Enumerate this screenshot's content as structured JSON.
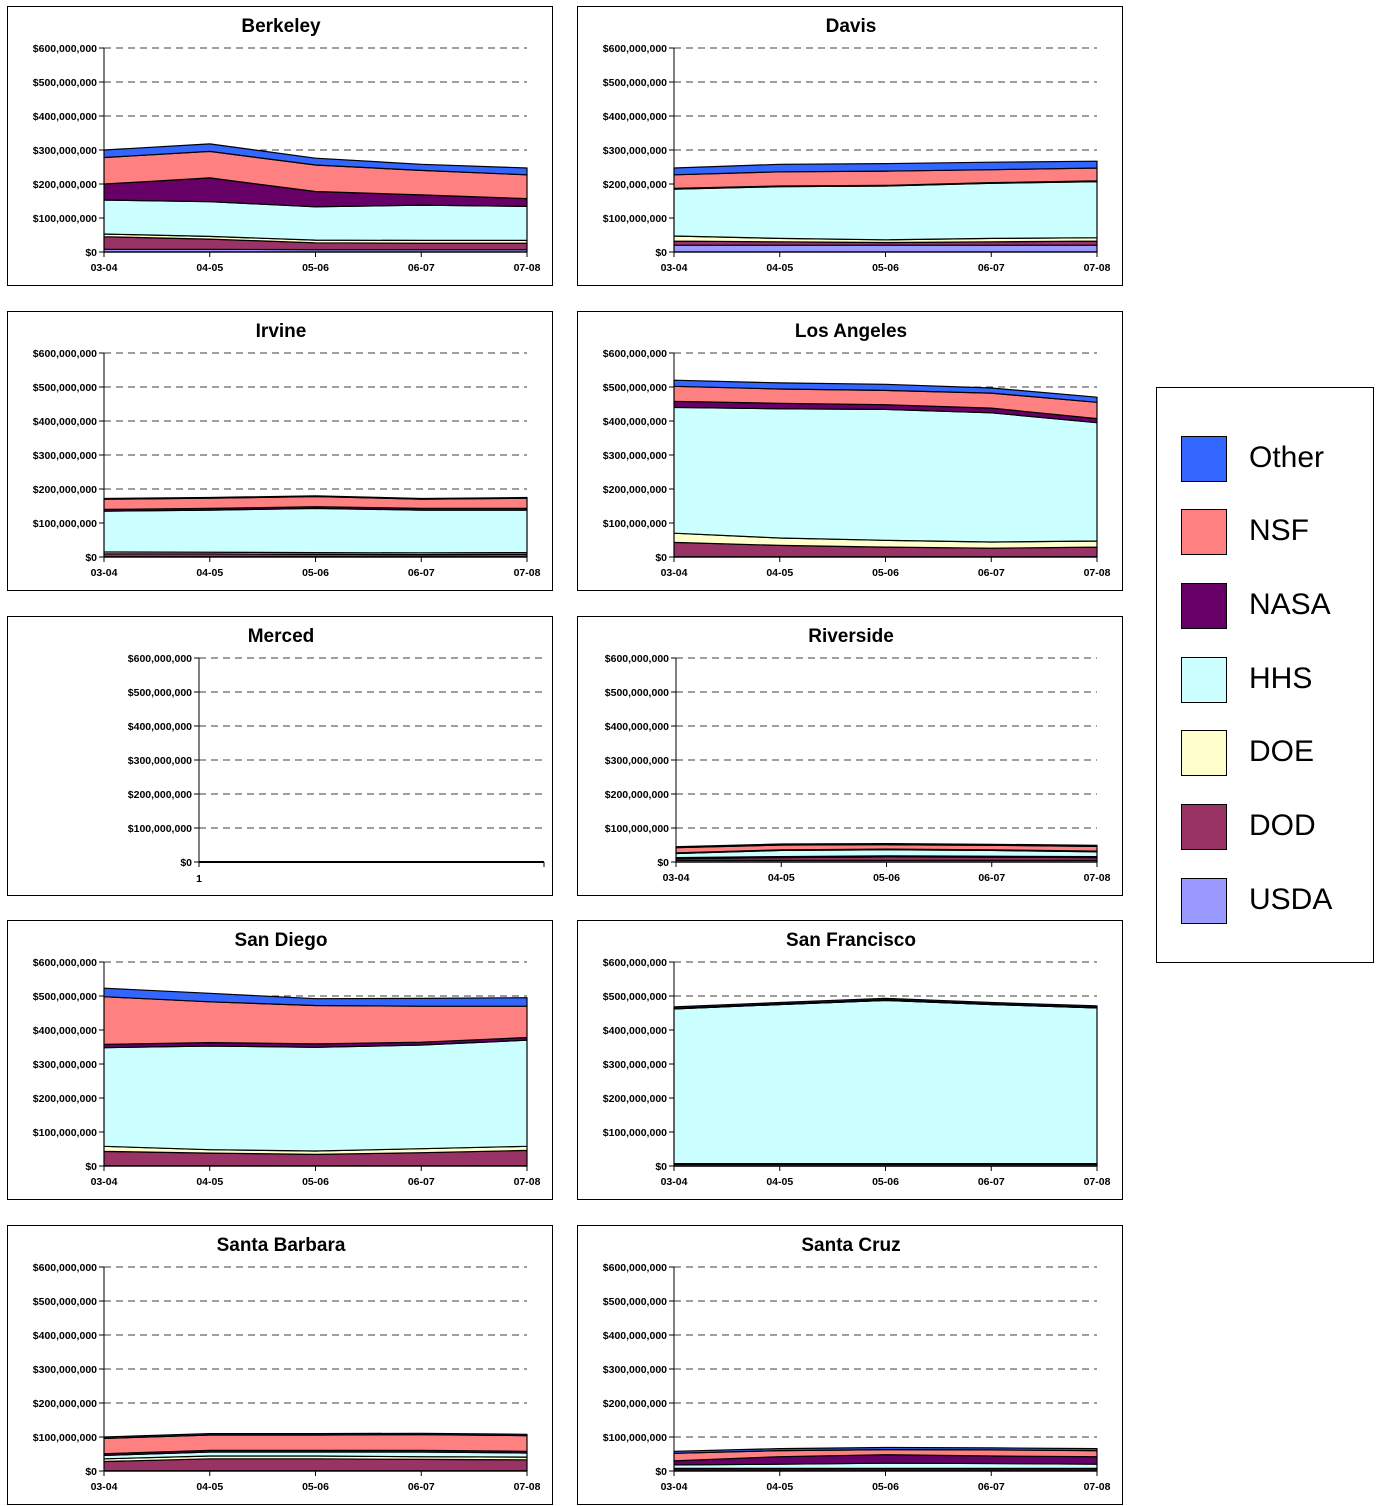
{
  "chart_data": {
    "type": "area",
    "stacked": true,
    "series_names": [
      "USDA",
      "DOD",
      "DOE",
      "HHS",
      "NASA",
      "NSF",
      "Other"
    ],
    "colors": {
      "USDA": "#9999ff",
      "DOD": "#993366",
      "DOE": "#ffffcc",
      "HHS": "#ccffff",
      "NASA": "#660066",
      "NSF": "#ff8080",
      "Other": "#3366ff"
    },
    "y_ticks": [
      "$0",
      "$100,000,000",
      "$200,000,000",
      "$300,000,000",
      "$400,000,000",
      "$500,000,000",
      "$600,000,000"
    ],
    "ylim": [
      0,
      600000000
    ],
    "grid": "dashed horizontal",
    "legend_position": "right",
    "charts": [
      {
        "title": "Berkeley",
        "categories": [
          "03-04",
          "04-05",
          "05-06",
          "06-07",
          "07-08"
        ],
        "series": [
          {
            "name": "USDA",
            "values": [
              8000000,
              8000000,
              7000000,
              7000000,
              7000000
            ]
          },
          {
            "name": "DOD",
            "values": [
              37000000,
              30000000,
              20000000,
              19000000,
              19000000
            ]
          },
          {
            "name": "DOE",
            "values": [
              8000000,
              8000000,
              8000000,
              8000000,
              8000000
            ]
          },
          {
            "name": "HHS",
            "values": [
              100000000,
              102000000,
              98000000,
              104000000,
              100000000
            ]
          },
          {
            "name": "NASA",
            "values": [
              47000000,
              70000000,
              45000000,
              30000000,
              23000000
            ]
          },
          {
            "name": "NSF",
            "values": [
              78000000,
              78000000,
              78000000,
              72000000,
              70000000
            ]
          },
          {
            "name": "Other",
            "values": [
              22000000,
              22000000,
              20000000,
              18000000,
              20000000
            ]
          }
        ]
      },
      {
        "title": "Davis",
        "categories": [
          "03-04",
          "04-05",
          "05-06",
          "06-07",
          "07-08"
        ],
        "series": [
          {
            "name": "USDA",
            "values": [
              20000000,
              20000000,
              20000000,
              20000000,
              20000000
            ]
          },
          {
            "name": "DOD",
            "values": [
              12000000,
              10000000,
              8000000,
              10000000,
              12000000
            ]
          },
          {
            "name": "DOE",
            "values": [
              15000000,
              10000000,
              8000000,
              10000000,
              10000000
            ]
          },
          {
            "name": "HHS",
            "values": [
              138000000,
              152000000,
              158000000,
              162000000,
              165000000
            ]
          },
          {
            "name": "NASA",
            "values": [
              2000000,
              2000000,
              2000000,
              2000000,
              2000000
            ]
          },
          {
            "name": "NSF",
            "values": [
              40000000,
              42000000,
              42000000,
              38000000,
              38000000
            ]
          },
          {
            "name": "Other",
            "values": [
              20000000,
              22000000,
              22000000,
              22000000,
              20000000
            ]
          }
        ]
      },
      {
        "title": "Irvine",
        "categories": [
          "03-04",
          "04-05",
          "05-06",
          "06-07",
          "07-08"
        ],
        "series": [
          {
            "name": "USDA",
            "values": [
              1000000,
              1000000,
              1000000,
              1000000,
              1000000
            ]
          },
          {
            "name": "DOD",
            "values": [
              8000000,
              8000000,
              7000000,
              6000000,
              7000000
            ]
          },
          {
            "name": "DOE",
            "values": [
              6000000,
              5000000,
              5000000,
              5000000,
              5000000
            ]
          },
          {
            "name": "HHS",
            "values": [
              120000000,
              124000000,
              130000000,
              126000000,
              125000000
            ]
          },
          {
            "name": "NASA",
            "values": [
              5000000,
              5000000,
              5000000,
              5000000,
              5000000
            ]
          },
          {
            "name": "NSF",
            "values": [
              30000000,
              30000000,
              30000000,
              27000000,
              30000000
            ]
          },
          {
            "name": "Other",
            "values": [
              2000000,
              2000000,
              2000000,
              2000000,
              2000000
            ]
          }
        ]
      },
      {
        "title": "Los Angeles",
        "categories": [
          "03-04",
          "04-05",
          "05-06",
          "06-07",
          "07-08"
        ],
        "series": [
          {
            "name": "USDA",
            "values": [
              1000000,
              1000000,
              1000000,
              1000000,
              1000000
            ]
          },
          {
            "name": "DOD",
            "values": [
              42000000,
              33000000,
              28000000,
              25000000,
              28000000
            ]
          },
          {
            "name": "DOE",
            "values": [
              27000000,
              22000000,
              20000000,
              18000000,
              18000000
            ]
          },
          {
            "name": "HHS",
            "values": [
              370000000,
              380000000,
              385000000,
              380000000,
              348000000
            ]
          },
          {
            "name": "NASA",
            "values": [
              18000000,
              16000000,
              14000000,
              14000000,
              12000000
            ]
          },
          {
            "name": "NSF",
            "values": [
              44000000,
              42000000,
              42000000,
              44000000,
              48000000
            ]
          },
          {
            "name": "Other",
            "values": [
              18000000,
              18000000,
              18000000,
              15000000,
              15000000
            ]
          }
        ]
      },
      {
        "title": "Merced",
        "categories": [
          "1"
        ],
        "series": [
          {
            "name": "USDA",
            "values": [
              0
            ]
          },
          {
            "name": "DOD",
            "values": [
              0
            ]
          },
          {
            "name": "DOE",
            "values": [
              0
            ]
          },
          {
            "name": "HHS",
            "values": [
              0
            ]
          },
          {
            "name": "NASA",
            "values": [
              0
            ]
          },
          {
            "name": "NSF",
            "values": [
              0
            ]
          },
          {
            "name": "Other",
            "values": [
              0
            ]
          }
        ]
      },
      {
        "title": "Riverside",
        "categories": [
          "03-04",
          "04-05",
          "05-06",
          "06-07",
          "07-08"
        ],
        "series": [
          {
            "name": "USDA",
            "values": [
              5000000,
              5000000,
              5000000,
              5000000,
              5000000
            ]
          },
          {
            "name": "DOD",
            "values": [
              5000000,
              8000000,
              10000000,
              9000000,
              8000000
            ]
          },
          {
            "name": "DOE",
            "values": [
              3000000,
              3000000,
              3000000,
              3000000,
              3000000
            ]
          },
          {
            "name": "HHS",
            "values": [
              12000000,
              18000000,
              18000000,
              17000000,
              14000000
            ]
          },
          {
            "name": "NASA",
            "values": [
              2000000,
              2000000,
              2000000,
              2000000,
              2000000
            ]
          },
          {
            "name": "NSF",
            "values": [
              15000000,
              14000000,
              13000000,
              13000000,
              14000000
            ]
          },
          {
            "name": "Other",
            "values": [
              3000000,
              3000000,
              3000000,
              3000000,
              3000000
            ]
          }
        ]
      },
      {
        "title": "San Diego",
        "categories": [
          "03-04",
          "04-05",
          "05-06",
          "06-07",
          "07-08"
        ],
        "series": [
          {
            "name": "USDA",
            "values": [
              1000000,
              1000000,
              1000000,
              1000000,
              1000000
            ]
          },
          {
            "name": "DOD",
            "values": [
              42000000,
              37000000,
              33000000,
              38000000,
              45000000
            ]
          },
          {
            "name": "DOE",
            "values": [
              15000000,
              10000000,
              10000000,
              12000000,
              12000000
            ]
          },
          {
            "name": "HHS",
            "values": [
              290000000,
              305000000,
              305000000,
              305000000,
              312000000
            ]
          },
          {
            "name": "NASA",
            "values": [
              10000000,
              10000000,
              10000000,
              8000000,
              8000000
            ]
          },
          {
            "name": "NSF",
            "values": [
              140000000,
              120000000,
              113000000,
              106000000,
              92000000
            ]
          },
          {
            "name": "Other",
            "values": [
              25000000,
              25000000,
              20000000,
              23000000,
              25000000
            ]
          }
        ]
      },
      {
        "title": "San Francisco",
        "categories": [
          "03-04",
          "04-05",
          "05-06",
          "06-07",
          "07-08"
        ],
        "series": [
          {
            "name": "USDA",
            "values": [
              0,
              0,
              0,
              0,
              0
            ]
          },
          {
            "name": "DOD",
            "values": [
              5000000,
              5000000,
              5000000,
              5000000,
              5000000
            ]
          },
          {
            "name": "DOE",
            "values": [
              2000000,
              2000000,
              2000000,
              2000000,
              2000000
            ]
          },
          {
            "name": "HHS",
            "values": [
              455000000,
              468000000,
              480000000,
              468000000,
              458000000
            ]
          },
          {
            "name": "NASA",
            "values": [
              0,
              0,
              0,
              0,
              0
            ]
          },
          {
            "name": "NSF",
            "values": [
              2000000,
              2000000,
              2000000,
              2000000,
              2000000
            ]
          },
          {
            "name": "Other",
            "values": [
              4000000,
              4000000,
              4000000,
              4000000,
              4000000
            ]
          }
        ]
      },
      {
        "title": "Santa Barbara",
        "categories": [
          "03-04",
          "04-05",
          "05-06",
          "06-07",
          "07-08"
        ],
        "series": [
          {
            "name": "USDA",
            "values": [
              1000000,
              1000000,
              1000000,
              1000000,
              1000000
            ]
          },
          {
            "name": "DOD",
            "values": [
              27000000,
              35000000,
              35000000,
              33000000,
              32000000
            ]
          },
          {
            "name": "DOE",
            "values": [
              8000000,
              8000000,
              8000000,
              8000000,
              8000000
            ]
          },
          {
            "name": "HHS",
            "values": [
              10000000,
              12000000,
              12000000,
              14000000,
              12000000
            ]
          },
          {
            "name": "NASA",
            "values": [
              5000000,
              5000000,
              5000000,
              5000000,
              5000000
            ]
          },
          {
            "name": "NSF",
            "values": [
              45000000,
              45000000,
              45000000,
              46000000,
              46000000
            ]
          },
          {
            "name": "Other",
            "values": [
              4000000,
              4000000,
              4000000,
              4000000,
              4000000
            ]
          }
        ]
      },
      {
        "title": "Santa Cruz",
        "categories": [
          "03-04",
          "04-05",
          "05-06",
          "06-07",
          "07-08"
        ],
        "series": [
          {
            "name": "USDA",
            "values": [
              1000000,
              1000000,
              1000000,
              1000000,
              1000000
            ]
          },
          {
            "name": "DOD",
            "values": [
              5000000,
              5000000,
              5000000,
              5000000,
              5000000
            ]
          },
          {
            "name": "DOE",
            "values": [
              2000000,
              2000000,
              2000000,
              2000000,
              2000000
            ]
          },
          {
            "name": "HHS",
            "values": [
              10000000,
              12000000,
              15000000,
              14000000,
              12000000
            ]
          },
          {
            "name": "NASA",
            "values": [
              12000000,
              22000000,
              25000000,
              22000000,
              22000000
            ]
          },
          {
            "name": "NSF",
            "values": [
              22000000,
              18000000,
              15000000,
              18000000,
              18000000
            ]
          },
          {
            "name": "Other",
            "values": [
              6000000,
              6000000,
              6000000,
              6000000,
              6000000
            ]
          }
        ]
      }
    ]
  },
  "legend": {
    "items": [
      {
        "label": "Other",
        "color": "#3366ff"
      },
      {
        "label": "NSF",
        "color": "#ff8080"
      },
      {
        "label": "NASA",
        "color": "#660066"
      },
      {
        "label": "HHS",
        "color": "#ccffff"
      },
      {
        "label": "DOE",
        "color": "#ffffcc"
      },
      {
        "label": "DOD",
        "color": "#993366"
      },
      {
        "label": "USDA",
        "color": "#9999ff"
      }
    ]
  }
}
